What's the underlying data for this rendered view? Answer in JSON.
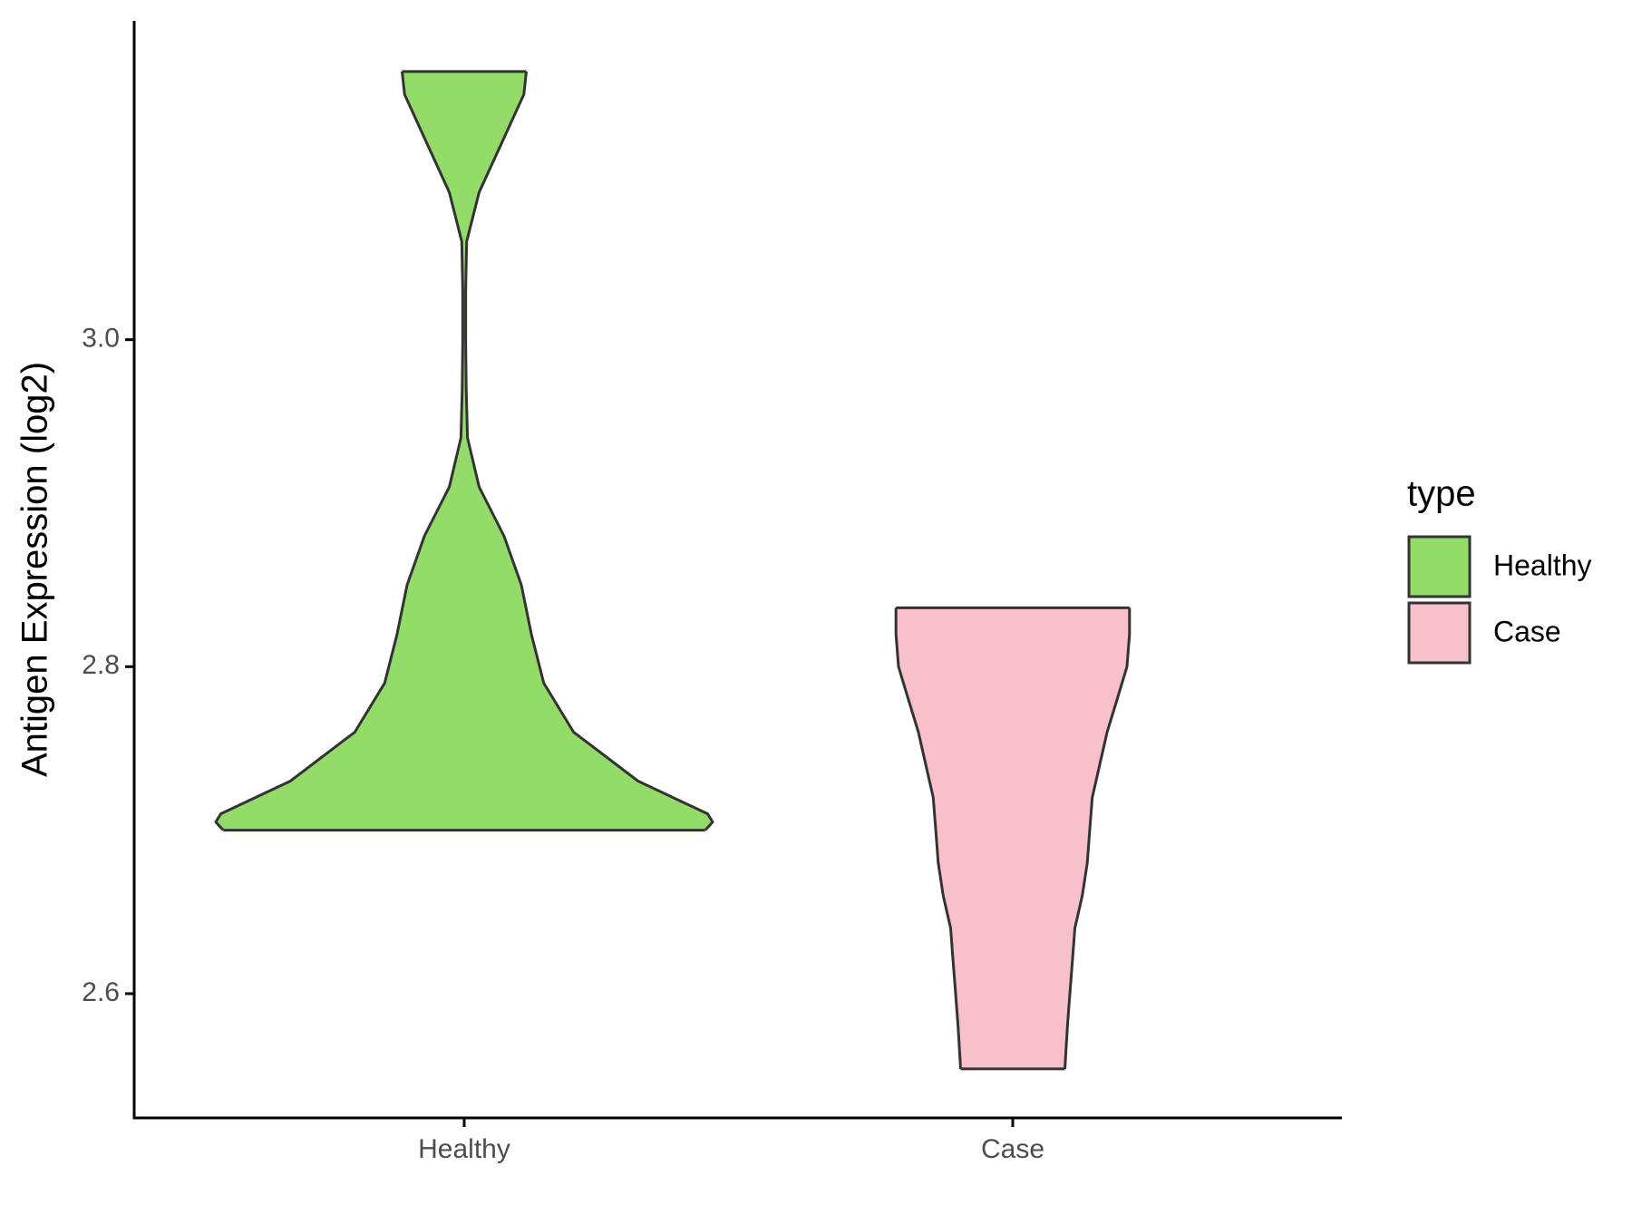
{
  "chart_data": {
    "type": "violin",
    "y_label": "Antigen Expression (log2)",
    "categories": [
      "Healthy",
      "Case"
    ],
    "legend_title": "type",
    "ylim": [
      2.524,
      3.195
    ],
    "yticks": [
      2.6,
      2.8,
      {
        "value": 3.0,
        "label": "3.0"
      }
    ],
    "series": [
      {
        "name": "Healthy",
        "color": "#93dc6a",
        "y": [
          2.7,
          2.705,
          2.71,
          2.73,
          2.76,
          2.79,
          2.82,
          2.85,
          2.88,
          2.91,
          2.94,
          2.97,
          3.0,
          3.03,
          3.06,
          3.09,
          3.12,
          3.15,
          3.164
        ],
        "density": [
          0.97,
          1.0,
          0.98,
          0.7,
          0.44,
          0.32,
          0.27,
          0.23,
          0.16,
          0.06,
          0.013,
          0.008,
          0.006,
          0.006,
          0.01,
          0.06,
          0.15,
          0.24,
          0.25
        ]
      },
      {
        "name": "Case",
        "color": "#f7c0cb",
        "y": [
          2.554,
          2.58,
          2.6,
          2.62,
          2.64,
          2.66,
          2.68,
          2.7,
          2.72,
          2.74,
          2.76,
          2.78,
          2.8,
          2.82,
          2.836
        ],
        "density": [
          0.21,
          0.22,
          0.23,
          0.24,
          0.25,
          0.28,
          0.3,
          0.31,
          0.32,
          0.35,
          0.38,
          0.42,
          0.46,
          0.47,
          0.47
        ]
      }
    ]
  }
}
